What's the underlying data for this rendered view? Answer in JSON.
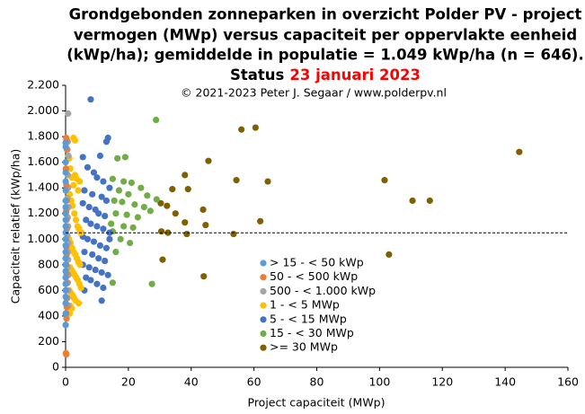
{
  "chart_data": {
    "type": "scatter",
    "title_lines": [
      "Grondgebonden zonneparken in overzicht Polder PV - project",
      "vermogen (MWp) versus capaciteit per oppervlakte eenheid",
      "(kWp/ha); gemiddelde in populatie = 1.049 kWp/ha (n = 646).",
      "Status"
    ],
    "title_date": "23 januari 2023",
    "annotation": "© 2021-2023  Peter J. Segaar / www.polderpv.nl",
    "x_label": "Project capaciteit (MWp)",
    "y_label": "Capaciteit relatief (kWp/ha)",
    "xlim": [
      0,
      160
    ],
    "xticks": [
      0,
      20,
      40,
      60,
      80,
      100,
      120,
      140,
      160
    ],
    "ylim": [
      0,
      2200
    ],
    "yticks": [
      0,
      200,
      400,
      600,
      800,
      {
        "value": 1000,
        "label": "1.000"
      },
      {
        "value": 1200,
        "label": "1.200"
      },
      {
        "value": 1400,
        "label": "1.400"
      },
      {
        "value": 1600,
        "label": "1.600"
      },
      {
        "value": 1800,
        "label": "1.800"
      },
      {
        "value": 2000,
        "label": "2.000"
      },
      {
        "value": 2200,
        "label": "2.200"
      }
    ],
    "reference_line": 1049,
    "grid": false,
    "series": [
      {
        "name": "> 15 - < 50 kWp",
        "color": "#5b9bd5",
        "x": [
          0.02,
          0.03,
          0.02,
          0.03,
          0.02,
          0.03,
          0.02,
          0.03,
          0.02,
          0.03,
          0.02,
          0.03,
          0.02,
          0.03,
          0.02,
          0.03,
          0.02,
          0.03,
          0.02,
          0.03,
          0.02,
          0.03,
          0.02,
          0.03,
          0.02
        ],
        "y": [
          1750,
          1720,
          1600,
          1520,
          1450,
          1380,
          1300,
          1250,
          1200,
          1150,
          1100,
          1050,
          1000,
          950,
          900,
          850,
          800,
          750,
          700,
          650,
          600,
          550,
          500,
          420,
          330
        ]
      },
      {
        "name": "50 - < 500 kWp",
        "color": "#ed7d31",
        "x": [
          0.2,
          0.3,
          0.4,
          0.1,
          0.25,
          0.35,
          0.2,
          0.3,
          0.4,
          0.1,
          0.25,
          0.35,
          0.2,
          0.3,
          0.4,
          0.1,
          0.25,
          0.35,
          0.2,
          0.3,
          0.1,
          0.2
        ],
        "y": [
          1790,
          1770,
          1700,
          1550,
          1420,
          1300,
          1220,
          1150,
          1080,
          1000,
          940,
          880,
          800,
          730,
          660,
          600,
          540,
          470,
          420,
          380,
          110,
          100
        ]
      },
      {
        "name": "500 - < 1.000 kWp",
        "color": "#a5a5a5",
        "x": [
          0.8,
          0.7,
          0.6,
          0.9,
          0.7,
          0.8,
          0.6,
          0.9,
          0.7,
          0.8,
          0.6,
          0.9,
          0.7,
          0.8,
          0.6,
          0.9,
          0.7,
          0.8,
          0.6,
          0.9
        ],
        "y": [
          1980,
          1760,
          1700,
          1650,
          1500,
          1400,
          1320,
          1250,
          1170,
          1100,
          1030,
          970,
          900,
          840,
          780,
          720,
          660,
          600,
          540,
          480
        ]
      },
      {
        "name": "1 - < 5 MWp",
        "color": "#ffc000",
        "x": [
          1.2,
          1.5,
          2.0,
          2.5,
          3.0,
          3.5,
          4.0,
          4.5,
          1.3,
          1.8,
          2.2,
          2.8,
          3.3,
          3.8,
          4.3,
          4.8,
          1.1,
          1.6,
          2.1,
          2.6,
          3.1,
          3.6,
          4.1,
          4.6,
          1.4,
          1.9,
          2.4,
          2.9,
          3.4,
          3.9,
          4.4,
          4.9,
          1.2,
          1.7,
          2.3,
          2.7,
          3.2,
          4.2,
          1.5,
          2.0,
          1.0,
          1.3,
          5.0,
          2.5,
          3.0
        ],
        "y": [
          1630,
          1550,
          1480,
          1420,
          1500,
          1470,
          1380,
          1450,
          1350,
          1300,
          1260,
          1200,
          1150,
          1100,
          1080,
          1050,
          1000,
          970,
          930,
          900,
          880,
          850,
          820,
          800,
          780,
          760,
          740,
          720,
          700,
          680,
          650,
          620,
          600,
          580,
          560,
          540,
          520,
          500,
          480,
          460,
          440,
          420,
          1050,
          1790,
          1770
        ]
      },
      {
        "name": "5 - < 15 MWp",
        "color": "#4472c4",
        "x": [
          8.0,
          13.5,
          13.0,
          11.0,
          5.5,
          7.0,
          9.0,
          10.0,
          12.0,
          14.0,
          6.0,
          8.5,
          11.5,
          13.0,
          5.5,
          7.5,
          9.5,
          10.5,
          12.5,
          6.5,
          8.0,
          10.0,
          12.0,
          14.0,
          5.5,
          7.0,
          9.0,
          11.0,
          13.0,
          6.0,
          8.5,
          10.5,
          12.5,
          5.5,
          7.5,
          9.5,
          11.5,
          13.5,
          6.5,
          8.0,
          10.0,
          12.0,
          6.0,
          11.5,
          14.0
        ],
        "y": [
          2090,
          1790,
          1760,
          1650,
          1640,
          1560,
          1520,
          1480,
          1450,
          1400,
          1380,
          1350,
          1330,
          1300,
          1280,
          1250,
          1230,
          1200,
          1180,
          1150,
          1120,
          1100,
          1080,
          1050,
          1020,
          1000,
          980,
          950,
          930,
          900,
          880,
          850,
          830,
          800,
          780,
          760,
          740,
          720,
          700,
          680,
          650,
          620,
          600,
          520,
          1000
        ]
      },
      {
        "name": "15 - < 30 MWp",
        "color": "#70ad47",
        "x": [
          28.8,
          16.5,
          19.0,
          15.0,
          21.0,
          24.0,
          17.0,
          20.0,
          26.0,
          29.0,
          15.5,
          18.0,
          22.0,
          25.0,
          27.0,
          16.0,
          19.5,
          23.0,
          14.5,
          18.5,
          21.5,
          15.0,
          17.5,
          20.5,
          16.0,
          27.5,
          15.0,
          18.5
        ],
        "y": [
          1930,
          1630,
          1640,
          1470,
          1440,
          1400,
          1380,
          1350,
          1340,
          1310,
          1300,
          1290,
          1270,
          1250,
          1220,
          1200,
          1190,
          1170,
          1120,
          1100,
          1090,
          1060,
          1000,
          970,
          900,
          650,
          660,
          1450
        ]
      },
      {
        "name": ">= 30 MWp",
        "color": "#7f6000",
        "x": [
          144.5,
          56,
          60.5,
          45.5,
          38,
          54.4,
          64.4,
          101.6,
          34,
          39,
          110.5,
          116,
          43.8,
          30.3,
          32.3,
          38,
          44.6,
          62,
          35,
          38.6,
          32.6,
          30.5,
          53.5,
          103,
          30.9,
          44
        ],
        "y": [
          1680,
          1855,
          1870,
          1610,
          1500,
          1460,
          1450,
          1460,
          1390,
          1390,
          1300,
          1300,
          1230,
          1280,
          1260,
          1130,
          1110,
          1140,
          1200,
          1040,
          1050,
          1060,
          1040,
          880,
          840,
          710
        ]
      }
    ]
  }
}
